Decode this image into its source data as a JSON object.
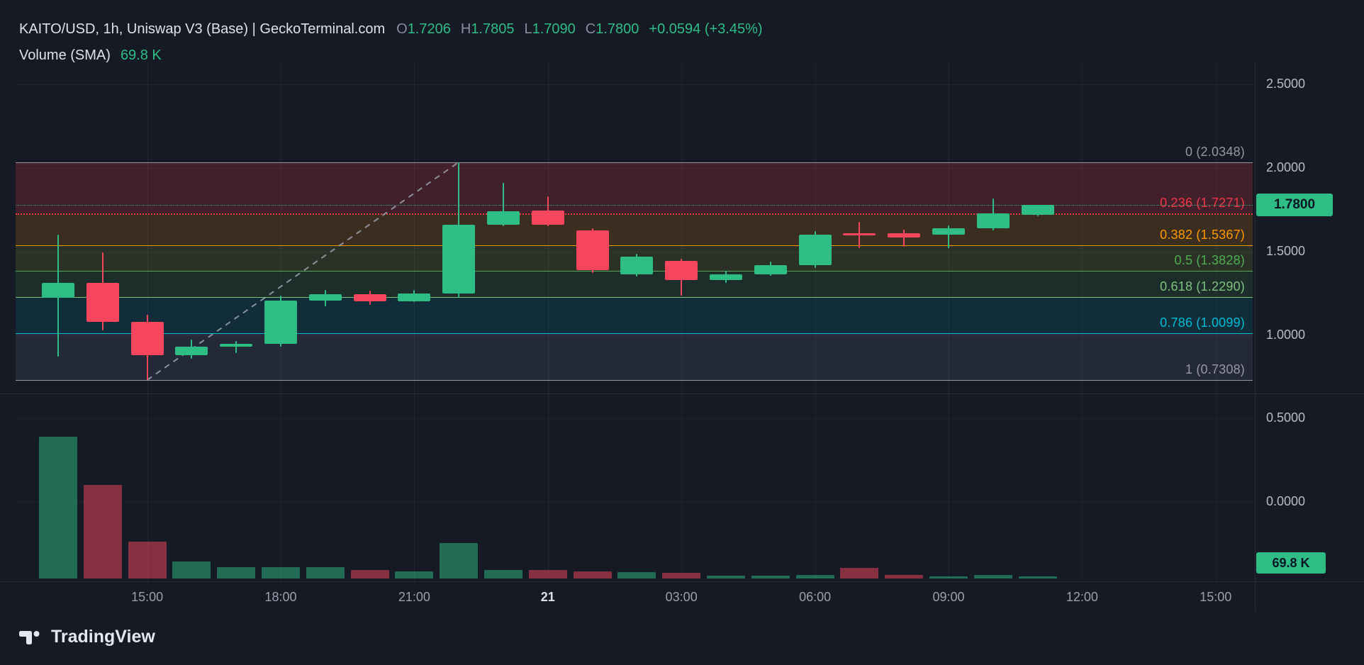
{
  "header": {
    "symbol_line": "KAITO/USD, 1h, Uniswap V3 (Base) | GeckoTerminal.com",
    "ohlc": {
      "o_label": "O",
      "o_value": "1.7206",
      "h_label": "H",
      "h_value": "1.7805",
      "l_label": "L",
      "l_value": "1.7090",
      "c_label": "C",
      "c_value": "1.7800",
      "change": "+0.0594 (+3.45%)"
    },
    "indicator": {
      "label": "Volume (SMA)",
      "value": "69.8 K"
    }
  },
  "badges": {
    "last_price": "1.7800",
    "volume": "69.8 K"
  },
  "footer": {
    "brand": "TradingView"
  },
  "colors": {
    "background": "#161a25",
    "up": "#2ebd85",
    "down": "#f6465d",
    "axis_text": "#b7bcc8",
    "grid": "rgba(255,255,255,0.05)"
  },
  "chart_data": {
    "type": "candlestick",
    "title": "KAITO/USD, 1h, Uniswap V3 (Base) | GeckoTerminal.com",
    "symbol": "KAITO/USD",
    "interval": "1h",
    "legend_position": "top-left",
    "grid": true,
    "up_color": "#2ebd85",
    "down_color": "#f6465d",
    "price_axis": {
      "range": [
        0.0,
        2.5
      ],
      "ticks": [
        {
          "value": 2.5,
          "label": "2.5000"
        },
        {
          "value": 2.0,
          "label": "2.0000"
        },
        {
          "value": 1.5,
          "label": "1.5000"
        },
        {
          "value": 1.0,
          "label": "1.0000"
        },
        {
          "value": 0.5,
          "label": "0.5000"
        },
        {
          "value": 0.0,
          "label": "0.0000"
        }
      ]
    },
    "time_axis": {
      "ticks": [
        {
          "hour": 2,
          "label": "15:00",
          "bold": false
        },
        {
          "hour": 5,
          "label": "18:00",
          "bold": false
        },
        {
          "hour": 8,
          "label": "21:00",
          "bold": false
        },
        {
          "hour": 11,
          "label": "21",
          "bold": true
        },
        {
          "hour": 14,
          "label": "03:00",
          "bold": false
        },
        {
          "hour": 17,
          "label": "06:00",
          "bold": false
        },
        {
          "hour": 20,
          "label": "09:00",
          "bold": false
        },
        {
          "hour": 23,
          "label": "12:00",
          "bold": false
        },
        {
          "hour": 26,
          "label": "15:00",
          "bold": false
        }
      ]
    },
    "candles_ohlc": [
      [
        1.224,
        1.599,
        0.87,
        1.3125
      ],
      [
        1.3125,
        1.494,
        1.026,
        1.078
      ],
      [
        1.078,
        1.12,
        0.7308,
        0.88
      ],
      [
        0.88,
        0.974,
        0.86,
        0.932
      ],
      [
        0.932,
        0.963,
        0.89,
        0.948
      ],
      [
        0.948,
        1.234,
        0.932,
        1.208
      ],
      [
        1.208,
        1.27,
        1.172,
        1.245
      ],
      [
        1.245,
        1.266,
        1.182,
        1.203
      ],
      [
        1.203,
        1.27,
        1.198,
        1.25
      ],
      [
        1.25,
        2.0348,
        1.224,
        1.661
      ],
      [
        1.661,
        1.911,
        1.65,
        1.74
      ],
      [
        1.745,
        1.828,
        1.65,
        1.661
      ],
      [
        1.625,
        1.64,
        1.37,
        1.39
      ],
      [
        1.365,
        1.484,
        1.349,
        1.47
      ],
      [
        1.443,
        1.458,
        1.234,
        1.328
      ],
      [
        1.328,
        1.385,
        1.3125,
        1.365
      ],
      [
        1.365,
        1.438,
        1.354,
        1.417
      ],
      [
        1.417,
        1.62,
        1.401,
        1.599
      ],
      [
        1.61,
        1.677,
        1.52,
        1.6
      ],
      [
        1.609,
        1.63,
        1.53,
        1.583
      ],
      [
        1.599,
        1.655,
        1.52,
        1.64
      ],
      [
        1.64,
        1.818,
        1.625,
        1.729
      ],
      [
        1.7206,
        1.7805,
        1.709,
        1.78
      ]
    ],
    "volume_rel": [
      1.0,
      0.66,
      0.26,
      0.12,
      0.08,
      0.08,
      0.08,
      0.06,
      0.05,
      0.25,
      0.06,
      0.06,
      0.05,
      0.045,
      0.04,
      0.02,
      0.02,
      0.025,
      0.075,
      0.025,
      0.012,
      0.025,
      0.008
    ],
    "volume_sma": "69.8 K",
    "fib_retracement": {
      "levels": [
        {
          "level": "0",
          "price": 2.0348,
          "label": "0 (2.0348)",
          "color": "#9598a1",
          "style": "solid"
        },
        {
          "level": "0.236",
          "price": 1.7271,
          "label": "0.236 (1.7271)",
          "color": "#f23645",
          "style": "dotted"
        },
        {
          "level": "0.382",
          "price": 1.5367,
          "label": "0.382 (1.5367)",
          "color": "#ff9800",
          "style": "solid"
        },
        {
          "level": "0.5",
          "price": 1.3828,
          "label": "0.5 (1.3828)",
          "color": "#4caf50",
          "style": "solid"
        },
        {
          "level": "0.618",
          "price": 1.229,
          "label": "0.618 (1.2290)",
          "color": "#7ec17e",
          "style": "solid"
        },
        {
          "level": "0.786",
          "price": 1.0099,
          "label": "0.786 (1.0099)",
          "color": "#00bcd4",
          "style": "solid"
        },
        {
          "level": "1",
          "price": 0.7308,
          "label": "1 (0.7308)",
          "color": "#9598a1",
          "style": "solid"
        }
      ],
      "band_fills": [
        "rgba(242,54,69,0.20)",
        "rgba(255,152,0,0.16)",
        "rgba(205,220,57,0.12)",
        "rgba(76,175,80,0.13)",
        "rgba(0,151,167,0.16)",
        "rgba(142,159,198,0.12)"
      ]
    },
    "trendline": {
      "from_hour": 2,
      "from_price": 0.7308,
      "to_hour": 9,
      "to_price": 2.0348,
      "style": "dashed",
      "color": "#9ca3af"
    },
    "last_price": {
      "value": 1.78,
      "label": "1.7800"
    }
  }
}
